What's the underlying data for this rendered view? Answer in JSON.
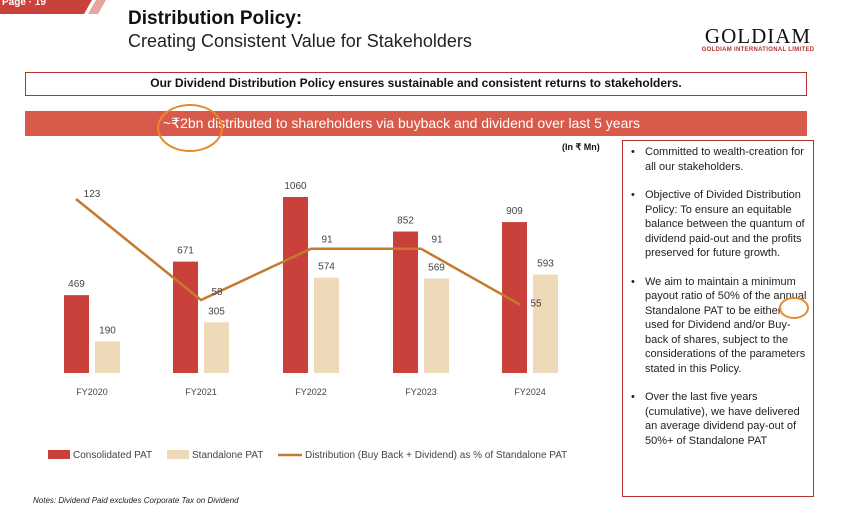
{
  "page": {
    "tab_label": "Page · 19"
  },
  "header": {
    "title": "Distribution Policy:",
    "subtitle": "Creating Consistent Value for Stakeholders"
  },
  "logo": {
    "name": "GOLDIAM",
    "tagline": "GOLDIAM INTERNATIONAL LIMITED"
  },
  "policy_statement": "Our Dividend Distribution Policy ensures sustainable and consistent returns to stakeholders.",
  "banner": "~₹2bn distributed to shareholders via buyback and dividend over last 5 years",
  "unit_label": "(In ₹ Mn)",
  "colors": {
    "accent": "#b3322b",
    "consolidated": "#c9413a",
    "standalone": "#eed9b8",
    "line": "#c67a2e",
    "highlight": "#e88a2c"
  },
  "chart_data": {
    "type": "bar",
    "categories": [
      "FY2020",
      "FY2021",
      "FY2022",
      "FY2023",
      "FY2024"
    ],
    "series": [
      {
        "name": "Consolidated PAT",
        "type": "bar",
        "values": [
          469,
          671,
          1060,
          852,
          909
        ]
      },
      {
        "name": "Standalone PAT",
        "type": "bar",
        "values": [
          190,
          305,
          574,
          569,
          593
        ]
      },
      {
        "name": "Distribution (Buy Back + Dividend) as % of Standalone PAT",
        "type": "line",
        "values": [
          123,
          58,
          91,
          91,
          55
        ]
      }
    ],
    "ylim": [
      0,
      1200
    ],
    "line_ylim": [
      0,
      200
    ],
    "legend_position": "bottom",
    "grid": false
  },
  "notes": "Notes: Dividend Paid excludes Corporate Tax on Dividend",
  "side_points": [
    "Committed to wealth-creation for all our stakeholders.",
    "Objective of Divided Distribution Policy: To ensure an equitable balance between the quantum of dividend paid-out and the profits preserved for future growth.",
    "We aim to maintain a minimum payout ratio of 50% of the annual Standalone PAT to be either used for Dividend and/or Buy-back of shares, subject to the considerations of the parameters stated in this Policy.",
    "Over the last five years (cumulative), we have delivered an average dividend pay-out of 50%+ of Standalone PAT"
  ],
  "bullet_glyph": "•"
}
